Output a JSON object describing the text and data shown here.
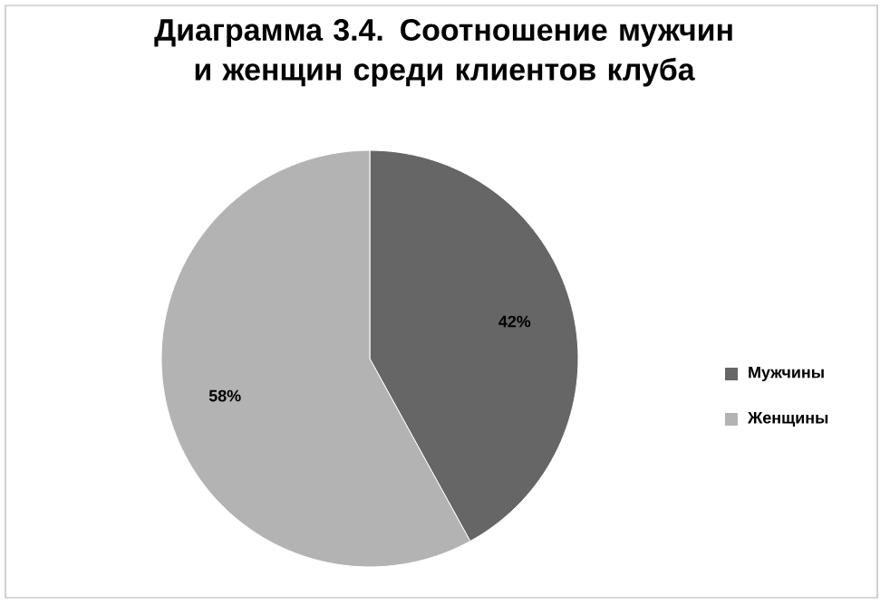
{
  "chart_data": {
    "type": "pie",
    "title": "Диаграмма 3.4. Соотношение мужчин и женщин среди клиентов клуба",
    "categories": [
      "Мужчины",
      "Женщины"
    ],
    "values": [
      42,
      58
    ],
    "colors": [
      "#666666",
      "#b3b3b3"
    ],
    "value_labels": [
      "42%",
      "58%"
    ],
    "legend": "right"
  }
}
